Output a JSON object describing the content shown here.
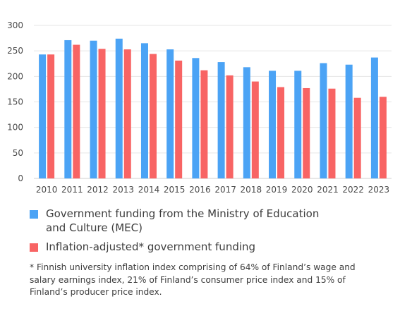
{
  "chart_data": {
    "type": "bar",
    "categories": [
      "2010",
      "2011",
      "2012",
      "2013",
      "2014",
      "2015",
      "2016",
      "2017",
      "2018",
      "2019",
      "2020",
      "2021",
      "2022",
      "2023"
    ],
    "series": [
      {
        "name": "Government funding from the Ministry of Education and Culture (MEC)",
        "color": "#4ba3f5",
        "values": [
          243,
          271,
          270,
          274,
          265,
          253,
          236,
          228,
          218,
          211,
          211,
          226,
          223,
          237
        ]
      },
      {
        "name": "Inflation-adjusted* government funding",
        "color": "#f86464",
        "values": [
          243,
          262,
          254,
          253,
          244,
          231,
          212,
          202,
          190,
          179,
          177,
          176,
          158,
          160
        ]
      }
    ],
    "ylim": [
      0,
      300
    ],
    "yticks": [
      0,
      50,
      100,
      150,
      200,
      250,
      300
    ],
    "grid": true,
    "legend_position": "bottom-left",
    "footnote": "* Finnish university inflation index comprising of 64% of Finland’s wage and salary earnings index, 21% of Finland’s consumer price index and 15% of Finland’s producer price index."
  }
}
